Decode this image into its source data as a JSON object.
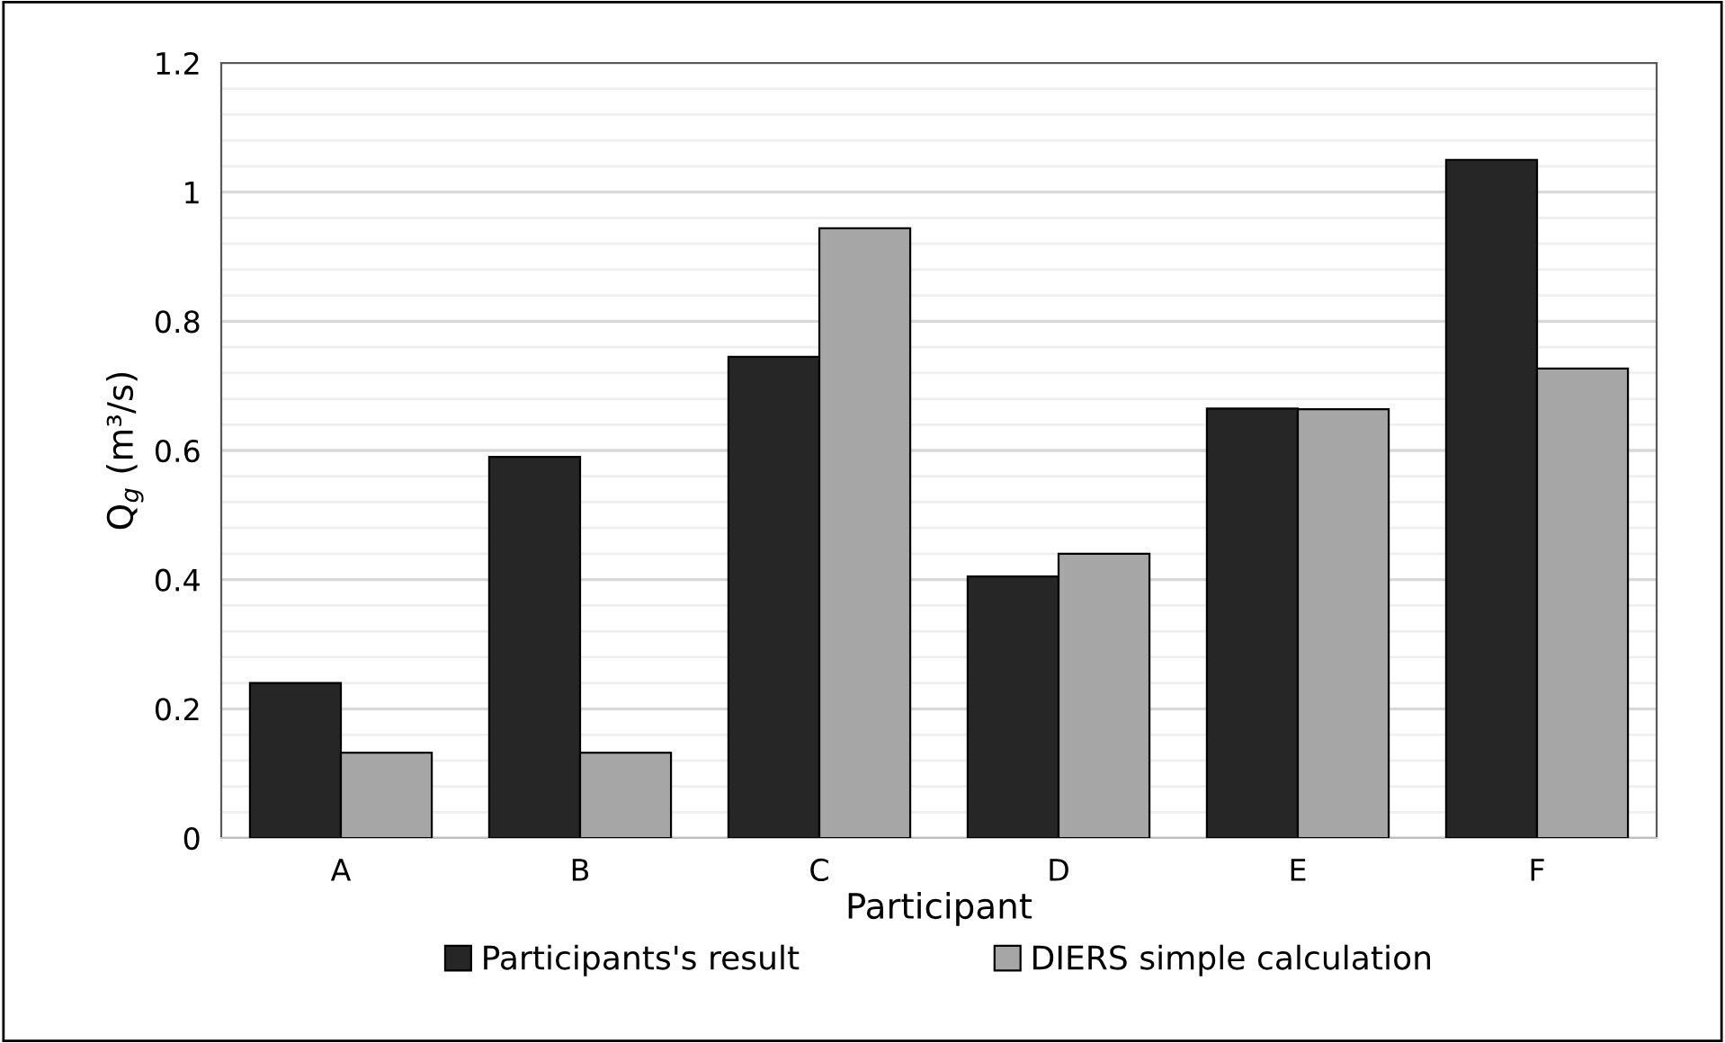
{
  "chart_data": {
    "type": "bar",
    "xlabel": "Participant",
    "ylabel": "Q$_{g}$ (m³/s)",
    "categories": [
      "A",
      "B",
      "C",
      "D",
      "E",
      "F"
    ],
    "series": [
      {
        "name": "Participants's result",
        "color": "#262626",
        "values": [
          0.24,
          0.59,
          0.745,
          0.405,
          0.665,
          1.05
        ]
      },
      {
        "name": "DIERS simple calculation",
        "color": "#a6a6a6",
        "values": [
          0.132,
          0.132,
          0.944,
          0.44,
          0.664,
          0.727
        ]
      }
    ],
    "ylim": [
      0,
      1.2
    ],
    "yticks": [
      0,
      0.2,
      0.4,
      0.6,
      0.8,
      1,
      1.2
    ],
    "grid": "y",
    "legend": "bottom"
  }
}
